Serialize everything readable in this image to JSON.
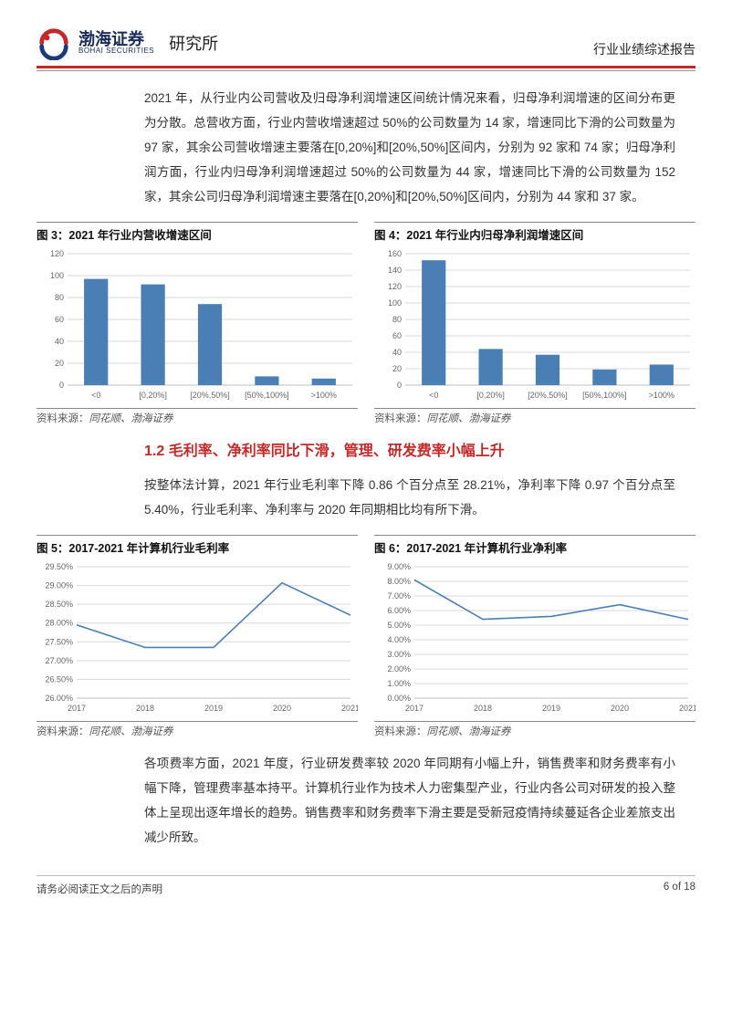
{
  "header": {
    "logo_cn": "渤海证券",
    "logo_en": "BOHAI SECURITIES",
    "institute": "研究所",
    "doc_title": "行业业绩综述报告"
  },
  "para1": "2021 年，从行业内公司营收及归母净利润增速区间统计情况来看，归母净利润增速的区间分布更为分散。总营收方面，行业内营收增速超过 50%的公司数量为 14 家，增速同比下滑的公司数量为 97 家，其余公司营收增速主要落在[0,20%]和[20%,50%]区间内，分别为 92 家和 74 家；归母净利润方面，行业内归母净利润增速超过 50%的公司数量为 44 家，增速同比下滑的公司数量为 152 家，其余公司归母净利润增速主要落在[0,20%]和[20%,50%]区间内，分别为 44 家和 37 家。",
  "fig3": {
    "title": "图 3：2021 年行业内营收增速区间",
    "type": "bar",
    "categories": [
      "<0",
      "[0,20%]",
      "[20%,50%]",
      "[50%,100%]",
      ">100%"
    ],
    "values": [
      97,
      92,
      74,
      8,
      6
    ],
    "ylim": [
      0,
      120
    ],
    "ytick_step": 20,
    "bar_color": "#4a7fb5",
    "bar_width": 0.42,
    "grid_color": "#d9d9d9",
    "axis_color": "#bfbfbf",
    "tick_fontsize": 9,
    "bg": "#ffffff"
  },
  "fig4": {
    "title": "图 4：2021 年行业内归母净利润增速区间",
    "type": "bar",
    "categories": [
      "<0",
      "[0,20%]",
      "[20%,50%]",
      "[50%,100%]",
      ">100%"
    ],
    "values": [
      152,
      44,
      37,
      19,
      25
    ],
    "ylim": [
      0,
      160
    ],
    "ytick_step": 20,
    "bar_color": "#4a7fb5",
    "bar_width": 0.42,
    "grid_color": "#d9d9d9",
    "axis_color": "#bfbfbf",
    "tick_fontsize": 9,
    "bg": "#ffffff"
  },
  "source_label": "资料来源：",
  "source_text": "同花顺、渤海证券",
  "section12": "1.2 毛利率、净利率同比下滑，管理、研发费率小幅上升",
  "para2": "按整体法计算，2021 年行业毛利率下降 0.86 个百分点至 28.21%，净利率下降 0.97 个百分点至 5.40%，行业毛利率、净利率与 2020 年同期相比均有所下滑。",
  "fig5": {
    "title": "图 5：2017-2021 年计算机行业毛利率",
    "type": "line",
    "categories": [
      "2017",
      "2018",
      "2019",
      "2020",
      "2021"
    ],
    "values": [
      27.95,
      27.35,
      27.35,
      29.07,
      28.21
    ],
    "ylim": [
      26.0,
      29.5
    ],
    "ytick_step": 0.5,
    "y_fmt": "pct2",
    "line_color": "#4a7fb5",
    "line_width": 1.6,
    "grid_color": "#d9d9d9",
    "axis_color": "#bfbfbf",
    "tick_fontsize": 9,
    "bg": "#ffffff"
  },
  "fig6": {
    "title": "图 6：2017-2021 年计算机行业净利率",
    "type": "line",
    "categories": [
      "2017",
      "2018",
      "2019",
      "2020",
      "2021"
    ],
    "values": [
      8.1,
      5.4,
      5.6,
      6.4,
      5.4
    ],
    "ylim": [
      0.0,
      9.0
    ],
    "ytick_step": 1.0,
    "y_fmt": "pct2",
    "line_color": "#4a7fb5",
    "line_width": 1.6,
    "grid_color": "#d9d9d9",
    "axis_color": "#bfbfbf",
    "tick_fontsize": 9,
    "bg": "#ffffff"
  },
  "para3": "各项费率方面，2021 年度，行业研发费率较 2020 年同期有小幅上升，销售费率和财务费率有小幅下降，管理费率基本持平。计算机行业作为技术人力密集型产业，行业内各公司对研发的投入整体上呈现出逐年增长的趋势。销售费率和财务费率下滑主要是受新冠疫情持续蔓延各企业差旅支出减少所致。",
  "footer": {
    "left": "请务必阅读正文之后的声明",
    "right": "6 of 18"
  }
}
